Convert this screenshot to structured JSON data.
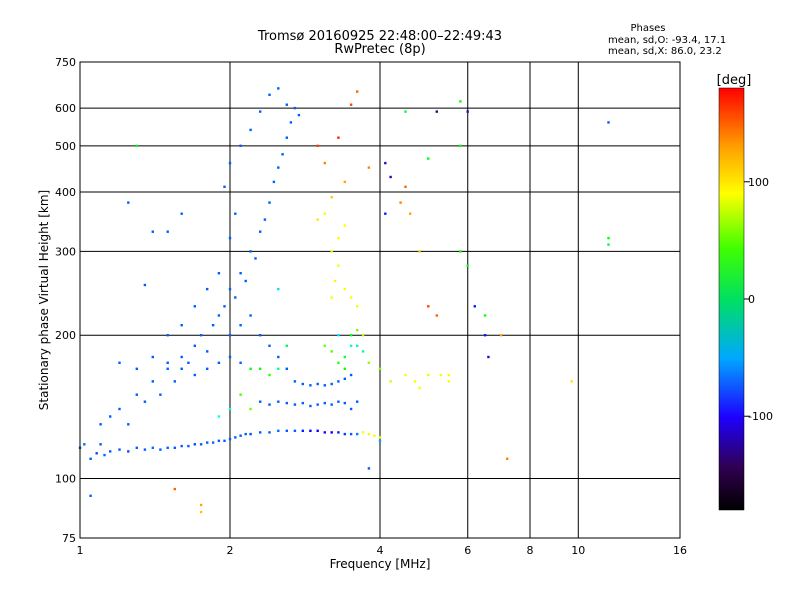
{
  "chart_data": {
    "type": "scatter",
    "title": "Tromsø 20160925 22:48:00–22:49:43",
    "subtitle": "RwPretec (8p)",
    "xlabel": "Frequency [MHz]",
    "ylabel": "Stationary phase Virtual Height [km]",
    "x_scale": "log",
    "y_scale": "log",
    "xlim": [
      1,
      16
    ],
    "ylim": [
      75,
      750
    ],
    "x_ticks": [
      1,
      2,
      4,
      6,
      8,
      10,
      16
    ],
    "x_tick_labels": [
      "1",
      "2",
      "4",
      "6",
      "8",
      "10",
      "16"
    ],
    "y_ticks": [
      75,
      100,
      200,
      300,
      400,
      500,
      600,
      750
    ],
    "y_tick_labels": [
      "75",
      "100",
      "200",
      "300",
      "400",
      "500",
      "600",
      "750"
    ],
    "grid": true,
    "info": {
      "heading": "Phases",
      "line1": "mean, sd,O: -93.4, 17.1",
      "line2": "mean, sd,X:  86.0, 23.2"
    },
    "colorbar": {
      "unit_label": "[deg]",
      "range": [
        -180,
        180
      ],
      "tick_values": [
        100,
        0,
        -100
      ],
      "tick_labels": [
        "100",
        "0",
        "-100"
      ]
    },
    "points": [
      [
        1.0,
        116,
        -100
      ],
      [
        1.02,
        118,
        -95
      ],
      [
        1.05,
        110,
        -100
      ],
      [
        1.08,
        113,
        -105
      ],
      [
        1.1,
        118,
        -100
      ],
      [
        1.12,
        112,
        -95
      ],
      [
        1.15,
        114,
        -100
      ],
      [
        1.2,
        115,
        -100
      ],
      [
        1.25,
        114,
        -105
      ],
      [
        1.3,
        116,
        -100
      ],
      [
        1.35,
        115,
        -100
      ],
      [
        1.4,
        116,
        -95
      ],
      [
        1.45,
        115,
        -100
      ],
      [
        1.5,
        116,
        -100
      ],
      [
        1.55,
        116,
        -100
      ],
      [
        1.6,
        117,
        -100
      ],
      [
        1.65,
        117,
        -100
      ],
      [
        1.7,
        118,
        -105
      ],
      [
        1.75,
        118,
        -100
      ],
      [
        1.8,
        119,
        -100
      ],
      [
        1.85,
        119,
        -95
      ],
      [
        1.9,
        120,
        -100
      ],
      [
        1.95,
        120,
        -100
      ],
      [
        2.0,
        121,
        -100
      ],
      [
        2.05,
        122,
        -100
      ],
      [
        2.1,
        123,
        -100
      ],
      [
        2.15,
        124,
        -100
      ],
      [
        2.2,
        124,
        -105
      ],
      [
        2.3,
        125,
        -100
      ],
      [
        2.4,
        125,
        -100
      ],
      [
        2.5,
        126,
        -95
      ],
      [
        2.6,
        126,
        -100
      ],
      [
        2.7,
        126,
        -100
      ],
      [
        2.8,
        126,
        -120
      ],
      [
        2.9,
        126,
        -130
      ],
      [
        3.0,
        126,
        -135
      ],
      [
        3.1,
        125,
        -140
      ],
      [
        3.2,
        125,
        -130
      ],
      [
        3.3,
        125,
        -120
      ],
      [
        3.4,
        124,
        -110
      ],
      [
        3.5,
        124,
        -100
      ],
      [
        3.6,
        124,
        -90
      ],
      [
        3.7,
        125,
        100
      ],
      [
        3.8,
        124,
        105
      ],
      [
        3.9,
        123,
        100
      ],
      [
        4.0,
        122,
        95
      ],
      [
        1.1,
        130,
        -100
      ],
      [
        1.15,
        135,
        -100
      ],
      [
        1.2,
        140,
        -100
      ],
      [
        1.25,
        130,
        -100
      ],
      [
        1.3,
        150,
        -100
      ],
      [
        1.35,
        145,
        -100
      ],
      [
        1.4,
        160,
        -100
      ],
      [
        1.45,
        150,
        -100
      ],
      [
        1.5,
        170,
        -100
      ],
      [
        1.55,
        160,
        -100
      ],
      [
        1.6,
        180,
        -100
      ],
      [
        1.65,
        175,
        -100
      ],
      [
        1.7,
        190,
        -100
      ],
      [
        1.75,
        200,
        -100
      ],
      [
        1.8,
        185,
        -100
      ],
      [
        1.85,
        210,
        -100
      ],
      [
        1.9,
        220,
        -100
      ],
      [
        1.95,
        230,
        -100
      ],
      [
        2.0,
        250,
        -100
      ],
      [
        2.05,
        240,
        -100
      ],
      [
        2.1,
        270,
        -100
      ],
      [
        2.15,
        260,
        -100
      ],
      [
        2.2,
        300,
        -100
      ],
      [
        2.25,
        290,
        -100
      ],
      [
        2.3,
        330,
        -100
      ],
      [
        2.35,
        350,
        -100
      ],
      [
        2.4,
        380,
        -100
      ],
      [
        2.45,
        420,
        -100
      ],
      [
        2.5,
        450,
        -100
      ],
      [
        2.55,
        480,
        -100
      ],
      [
        2.6,
        520,
        -100
      ],
      [
        2.65,
        560,
        -100
      ],
      [
        2.7,
        600,
        -100
      ],
      [
        2.75,
        580,
        -100
      ],
      [
        2.0,
        320,
        -100
      ],
      [
        2.05,
        360,
        -100
      ],
      [
        1.95,
        410,
        -100
      ],
      [
        2.0,
        460,
        -100
      ],
      [
        2.1,
        500,
        -100
      ],
      [
        2.2,
        540,
        -100
      ],
      [
        2.3,
        590,
        -100
      ],
      [
        2.4,
        640,
        -100
      ],
      [
        2.5,
        660,
        -100
      ],
      [
        2.6,
        610,
        -100
      ],
      [
        1.5,
        200,
        -100
      ],
      [
        1.6,
        210,
        -100
      ],
      [
        1.7,
        230,
        -100
      ],
      [
        1.8,
        250,
        -100
      ],
      [
        1.9,
        270,
        -100
      ],
      [
        2.0,
        200,
        -100
      ],
      [
        2.1,
        210,
        -100
      ],
      [
        2.2,
        220,
        -100
      ],
      [
        2.3,
        200,
        -100
      ],
      [
        2.4,
        190,
        -100
      ],
      [
        2.5,
        180,
        -100
      ],
      [
        2.6,
        170,
        -100
      ],
      [
        2.7,
        160,
        -100
      ],
      [
        2.8,
        158,
        -100
      ],
      [
        2.9,
        157,
        -100
      ],
      [
        3.0,
        158,
        -100
      ],
      [
        3.1,
        157,
        -100
      ],
      [
        3.2,
        158,
        -100
      ],
      [
        3.3,
        160,
        -100
      ],
      [
        3.4,
        162,
        -100
      ],
      [
        3.5,
        165,
        -100
      ],
      [
        2.3,
        145,
        -100
      ],
      [
        2.4,
        143,
        -100
      ],
      [
        2.5,
        145,
        -100
      ],
      [
        2.6,
        144,
        -100
      ],
      [
        2.7,
        143,
        -100
      ],
      [
        2.8,
        144,
        -100
      ],
      [
        2.9,
        142,
        -100
      ],
      [
        3.0,
        143,
        -100
      ],
      [
        3.1,
        144,
        -100
      ],
      [
        3.2,
        143,
        -100
      ],
      [
        3.3,
        145,
        -100
      ],
      [
        3.4,
        144,
        -100
      ],
      [
        3.5,
        140,
        -100
      ],
      [
        3.6,
        145,
        -100
      ],
      [
        1.2,
        175,
        -100
      ],
      [
        1.3,
        170,
        -100
      ],
      [
        1.4,
        180,
        -100
      ],
      [
        1.5,
        175,
        -100
      ],
      [
        1.6,
        170,
        -100
      ],
      [
        1.7,
        165,
        -100
      ],
      [
        1.8,
        170,
        -100
      ],
      [
        1.9,
        175,
        -100
      ],
      [
        2.0,
        180,
        -100
      ],
      [
        2.1,
        175,
        -100
      ],
      [
        3.2,
        240,
        100
      ],
      [
        3.25,
        260,
        105
      ],
      [
        3.3,
        280,
        100
      ],
      [
        3.2,
        300,
        95
      ],
      [
        3.3,
        320,
        100
      ],
      [
        3.4,
        250,
        100
      ],
      [
        3.5,
        240,
        100
      ],
      [
        3.6,
        230,
        100
      ],
      [
        3.4,
        340,
        100
      ],
      [
        3.1,
        360,
        100
      ],
      [
        3.1,
        190,
        60
      ],
      [
        3.2,
        185,
        50
      ],
      [
        3.3,
        175,
        40
      ],
      [
        3.4,
        170,
        30
      ],
      [
        3.5,
        200,
        20
      ],
      [
        3.6,
        205,
        60
      ],
      [
        3.7,
        200,
        80
      ],
      [
        3.8,
        175,
        70
      ],
      [
        4.0,
        170,
        60
      ],
      [
        4.2,
        160,
        90
      ],
      [
        4.5,
        165,
        100
      ],
      [
        4.7,
        160,
        100
      ],
      [
        5.0,
        165,
        95
      ],
      [
        5.3,
        165,
        100
      ],
      [
        5.5,
        165,
        100
      ],
      [
        3.6,
        190,
        -30
      ],
      [
        3.7,
        185,
        -20
      ],
      [
        3.4,
        180,
        0
      ],
      [
        3.5,
        190,
        -40
      ],
      [
        3.3,
        200,
        -60
      ],
      [
        3.0,
        350,
        110
      ],
      [
        3.2,
        390,
        120
      ],
      [
        3.4,
        420,
        130
      ],
      [
        3.8,
        450,
        140
      ],
      [
        4.5,
        410,
        150
      ],
      [
        4.4,
        380,
        140
      ],
      [
        4.6,
        360,
        130
      ],
      [
        4.8,
        300,
        120
      ],
      [
        5.0,
        230,
        160
      ],
      [
        5.2,
        220,
        150
      ],
      [
        3.1,
        460,
        140
      ],
      [
        3.0,
        500,
        160
      ],
      [
        3.3,
        520,
        170
      ],
      [
        3.6,
        650,
        150
      ],
      [
        3.5,
        610,
        160
      ],
      [
        4.1,
        460,
        -150
      ],
      [
        4.2,
        430,
        -160
      ],
      [
        4.1,
        360,
        -120
      ],
      [
        4.0,
        120,
        -80
      ],
      [
        3.8,
        105,
        -100
      ],
      [
        4.5,
        590,
        10
      ],
      [
        5.0,
        470,
        20
      ],
      [
        5.2,
        590,
        -170
      ],
      [
        5.8,
        620,
        30
      ],
      [
        6.0,
        590,
        -150
      ],
      [
        5.8,
        500,
        30
      ],
      [
        5.8,
        300,
        30
      ],
      [
        6.0,
        280,
        20
      ],
      [
        6.2,
        230,
        -120
      ],
      [
        6.5,
        220,
        30
      ],
      [
        6.5,
        200,
        -120
      ],
      [
        6.6,
        180,
        -150
      ],
      [
        7.0,
        200,
        130
      ],
      [
        7.2,
        110,
        140
      ],
      [
        9.7,
        160,
        110
      ],
      [
        11.5,
        560,
        -100
      ],
      [
        11.5,
        320,
        20
      ],
      [
        11.5,
        310,
        10
      ],
      [
        5.5,
        160,
        100
      ],
      [
        4.8,
        155,
        100
      ],
      [
        1.55,
        95,
        150
      ],
      [
        1.75,
        88,
        130
      ],
      [
        1.75,
        85,
        120
      ],
      [
        1.05,
        92,
        -100
      ],
      [
        1.3,
        500,
        10
      ],
      [
        1.25,
        380,
        -100
      ],
      [
        1.4,
        330,
        -100
      ],
      [
        1.35,
        255,
        -100
      ],
      [
        1.5,
        330,
        -100
      ],
      [
        1.6,
        360,
        -100
      ],
      [
        2.2,
        170,
        20
      ],
      [
        2.3,
        170,
        30
      ],
      [
        2.4,
        165,
        40
      ],
      [
        2.5,
        170,
        -20
      ],
      [
        2.6,
        190,
        0
      ],
      [
        2.1,
        150,
        50
      ],
      [
        2.2,
        140,
        60
      ],
      [
        2.0,
        140,
        -40
      ],
      [
        1.9,
        135,
        -50
      ],
      [
        2.5,
        250,
        -60
      ]
    ]
  }
}
